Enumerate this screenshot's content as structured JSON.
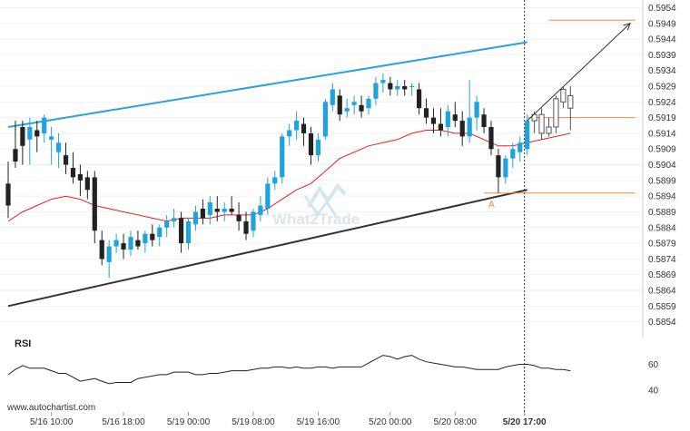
{
  "chart_data": {
    "type": "candlestick",
    "y_ticks": [
      "0.5954",
      "0.5949",
      "0.5944",
      "0.5939",
      "0.5934",
      "0.5929",
      "0.5924",
      "0.5919",
      "0.5914",
      "0.5909",
      "0.5904",
      "0.5899",
      "0.5894",
      "0.5889",
      "0.5884",
      "0.5879",
      "0.5874",
      "0.5869",
      "0.5864",
      "0.5859",
      "0.5854"
    ],
    "ylim": [
      0.5851,
      0.5955
    ],
    "x_ticks": [
      {
        "label": "5/16 10:00",
        "bar": 6
      },
      {
        "label": "5/16 18:00",
        "bar": 16
      },
      {
        "label": "5/19 00:00",
        "bar": 25
      },
      {
        "label": "5/19 08:00",
        "bar": 34
      },
      {
        "label": "5/19 16:00",
        "bar": 43
      },
      {
        "label": "5/20 00:00",
        "bar": 53
      },
      {
        "label": "5/20 08:00",
        "bar": 62
      },
      {
        "label": "5/20 17:00",
        "bar": 72
      }
    ],
    "bar_count": 79,
    "candles": [
      [
        0.5898,
        0.5905,
        0.5887,
        0.5891
      ],
      [
        0.5909,
        0.5918,
        0.5903,
        0.5905
      ],
      [
        0.5916,
        0.5918,
        0.5904,
        0.591
      ],
      [
        0.5912,
        0.5919,
        0.5904,
        0.5916
      ],
      [
        0.5915,
        0.5918,
        0.5908,
        0.5913
      ],
      [
        0.5914,
        0.592,
        0.5911,
        0.5919
      ],
      [
        0.5912,
        0.5916,
        0.5904,
        0.5913
      ],
      [
        0.5908,
        0.5914,
        0.5903,
        0.5911
      ],
      [
        0.5907,
        0.5911,
        0.5901,
        0.5904
      ],
      [
        0.5903,
        0.5908,
        0.5898,
        0.59
      ],
      [
        0.5901,
        0.5904,
        0.5894,
        0.5899
      ],
      [
        0.59,
        0.5902,
        0.5893,
        0.5896
      ],
      [
        0.59,
        0.5902,
        0.5879,
        0.5883
      ],
      [
        0.588,
        0.5883,
        0.5872,
        0.5874
      ],
      [
        0.5873,
        0.588,
        0.5868,
        0.5878
      ],
      [
        0.5878,
        0.5882,
        0.5876,
        0.588
      ],
      [
        0.5879,
        0.5882,
        0.5874,
        0.5877
      ],
      [
        0.5877,
        0.5883,
        0.5875,
        0.5881
      ],
      [
        0.588,
        0.5883,
        0.5877,
        0.5878
      ],
      [
        0.5879,
        0.5883,
        0.5876,
        0.5882
      ],
      [
        0.5882,
        0.5885,
        0.5878,
        0.588
      ],
      [
        0.5881,
        0.5885,
        0.5878,
        0.5884
      ],
      [
        0.5884,
        0.5888,
        0.5881,
        0.5886
      ],
      [
        0.5886,
        0.589,
        0.5884,
        0.5887
      ],
      [
        0.5887,
        0.5889,
        0.5876,
        0.5879
      ],
      [
        0.5879,
        0.5887,
        0.5877,
        0.5886
      ],
      [
        0.5885,
        0.5891,
        0.5883,
        0.5889
      ],
      [
        0.589,
        0.5893,
        0.5885,
        0.5887
      ],
      [
        0.5888,
        0.5894,
        0.5885,
        0.5892
      ],
      [
        0.589,
        0.5894,
        0.5886,
        0.5889
      ],
      [
        0.5889,
        0.5892,
        0.5886,
        0.589
      ],
      [
        0.589,
        0.5894,
        0.5888,
        0.5889
      ],
      [
        0.5888,
        0.5892,
        0.5883,
        0.5886
      ],
      [
        0.5886,
        0.5889,
        0.588,
        0.5882
      ],
      [
        0.5883,
        0.589,
        0.5881,
        0.5889
      ],
      [
        0.5888,
        0.5894,
        0.5886,
        0.5891
      ],
      [
        0.589,
        0.59,
        0.5888,
        0.5898
      ],
      [
        0.5898,
        0.5902,
        0.5896,
        0.59
      ],
      [
        0.59,
        0.5914,
        0.5898,
        0.5913
      ],
      [
        0.5913,
        0.5917,
        0.591,
        0.5915
      ],
      [
        0.5915,
        0.5921,
        0.5912,
        0.5918
      ],
      [
        0.5917,
        0.5919,
        0.591,
        0.5914
      ],
      [
        0.5914,
        0.5916,
        0.5904,
        0.5907
      ],
      [
        0.5907,
        0.5914,
        0.5905,
        0.5912
      ],
      [
        0.5913,
        0.5925,
        0.5912,
        0.5924
      ],
      [
        0.5923,
        0.593,
        0.5921,
        0.5928
      ],
      [
        0.5926,
        0.5928,
        0.5918,
        0.592
      ],
      [
        0.5921,
        0.5925,
        0.5919,
        0.5922
      ],
      [
        0.5923,
        0.5926,
        0.592,
        0.5924
      ],
      [
        0.5923,
        0.5926,
        0.5919,
        0.5921
      ],
      [
        0.5922,
        0.5926,
        0.592,
        0.5925
      ],
      [
        0.5925,
        0.5932,
        0.5923,
        0.593
      ],
      [
        0.593,
        0.5933,
        0.5927,
        0.5931
      ],
      [
        0.593,
        0.5932,
        0.5926,
        0.5928
      ],
      [
        0.5928,
        0.5931,
        0.5926,
        0.5929
      ],
      [
        0.5929,
        0.5931,
        0.5926,
        0.5928
      ],
      [
        0.5929,
        0.593,
        0.5926,
        0.5929
      ],
      [
        0.5928,
        0.593,
        0.592,
        0.5922
      ],
      [
        0.5922,
        0.5925,
        0.5917,
        0.5919
      ],
      [
        0.5919,
        0.5922,
        0.5914,
        0.5917
      ],
      [
        0.5917,
        0.5922,
        0.5913,
        0.5915
      ],
      [
        0.5916,
        0.5923,
        0.5913,
        0.5921
      ],
      [
        0.592,
        0.5924,
        0.5916,
        0.5918
      ],
      [
        0.5918,
        0.5921,
        0.591,
        0.5913
      ],
      [
        0.5913,
        0.5931,
        0.5911,
        0.5919
      ],
      [
        0.5919,
        0.5926,
        0.5915,
        0.5924
      ],
      [
        0.592,
        0.5922,
        0.5914,
        0.5916
      ],
      [
        0.5916,
        0.5918,
        0.5907,
        0.5909
      ],
      [
        0.5907,
        0.5909,
        0.5895,
        0.59
      ],
      [
        0.59,
        0.5907,
        0.5898,
        0.5906
      ],
      [
        0.5906,
        0.5911,
        0.5903,
        0.5909
      ],
      [
        0.5908,
        0.5913,
        0.5905,
        0.5911
      ],
      [
        0.5909,
        0.592,
        0.5907,
        0.5918
      ],
      [
        0.5918,
        0.5921,
        0.5914,
        0.592
      ],
      [
        0.592,
        0.5922,
        0.5912,
        0.5914
      ],
      [
        0.5914,
        0.5919,
        0.5913,
        0.5916
      ],
      [
        0.5916,
        0.5926,
        0.5914,
        0.5925
      ],
      [
        0.5924,
        0.5929,
        0.5922,
        0.5928
      ],
      [
        0.5926,
        0.5929,
        0.5915,
        0.5922
      ]
    ],
    "moving_average": [
      [
        0,
        0.5886
      ],
      [
        2,
        0.5889
      ],
      [
        4,
        0.5891
      ],
      [
        6,
        0.5893
      ],
      [
        8,
        0.5894
      ],
      [
        10,
        0.5893
      ],
      [
        12,
        0.5891
      ],
      [
        14,
        0.589
      ],
      [
        16,
        0.5889
      ],
      [
        18,
        0.5888
      ],
      [
        20,
        0.5887
      ],
      [
        22,
        0.5886
      ],
      [
        24,
        0.5887
      ],
      [
        26,
        0.5887
      ],
      [
        28,
        0.5887
      ],
      [
        30,
        0.5888
      ],
      [
        32,
        0.5888
      ],
      [
        34,
        0.5888
      ],
      [
        36,
        0.589
      ],
      [
        38,
        0.5893
      ],
      [
        40,
        0.5896
      ],
      [
        42,
        0.5898
      ],
      [
        44,
        0.5902
      ],
      [
        46,
        0.5906
      ],
      [
        48,
        0.5908
      ],
      [
        50,
        0.591
      ],
      [
        52,
        0.5911
      ],
      [
        54,
        0.5912
      ],
      [
        56,
        0.5914
      ],
      [
        58,
        0.5915
      ],
      [
        60,
        0.5915
      ],
      [
        62,
        0.5914
      ],
      [
        64,
        0.5914
      ],
      [
        66,
        0.5912
      ],
      [
        68,
        0.591
      ],
      [
        70,
        0.591
      ],
      [
        72,
        0.5911
      ],
      [
        74,
        0.5912
      ],
      [
        76,
        0.5913
      ],
      [
        78,
        0.5914
      ]
    ],
    "channel_upper": [
      [
        0,
        0.5916
      ],
      [
        72,
        0.5943
      ]
    ],
    "channel_lower": [
      [
        0,
        0.5859
      ],
      [
        72,
        0.5896
      ]
    ],
    "levels": [
      {
        "name": "target",
        "value": 0.595,
        "from_bar": 75,
        "to_bar": 87
      },
      {
        "name": "pivot",
        "value": 0.5919,
        "from_bar": 72,
        "to_bar": 87
      },
      {
        "name": "support",
        "value": 0.5895,
        "from_bar": 66,
        "to_bar": 87
      }
    ],
    "projection": {
      "from": [
        72,
        0.5918
      ],
      "to": [
        87,
        0.5949
      ]
    },
    "breakout_bar": 72,
    "point_label": {
      "text": "A",
      "bar": 67,
      "value": 0.5891
    },
    "rsi": {
      "label": "RSI",
      "ticks": [
        "60",
        "40"
      ],
      "ylim": [
        33,
        73
      ],
      "values": [
        52,
        56,
        59,
        57,
        57,
        57,
        55,
        53,
        53,
        50,
        47,
        48,
        49,
        47,
        45,
        46,
        46,
        46,
        49,
        50,
        51,
        52,
        52,
        54,
        54,
        54,
        52,
        52,
        53,
        53,
        54,
        55,
        55,
        55,
        56,
        57,
        57,
        58,
        58,
        57,
        58,
        57,
        57,
        58,
        58,
        57,
        58,
        58,
        58,
        58,
        61,
        64,
        67,
        66,
        64,
        66,
        67,
        64,
        62,
        61,
        60,
        59,
        58,
        58,
        57,
        56,
        56,
        56,
        56,
        58,
        59,
        60,
        60,
        59,
        57,
        57,
        56,
        56,
        55
      ]
    },
    "watermark": "What2Trade"
  },
  "footer": {
    "source": "www.autochartist.com"
  }
}
